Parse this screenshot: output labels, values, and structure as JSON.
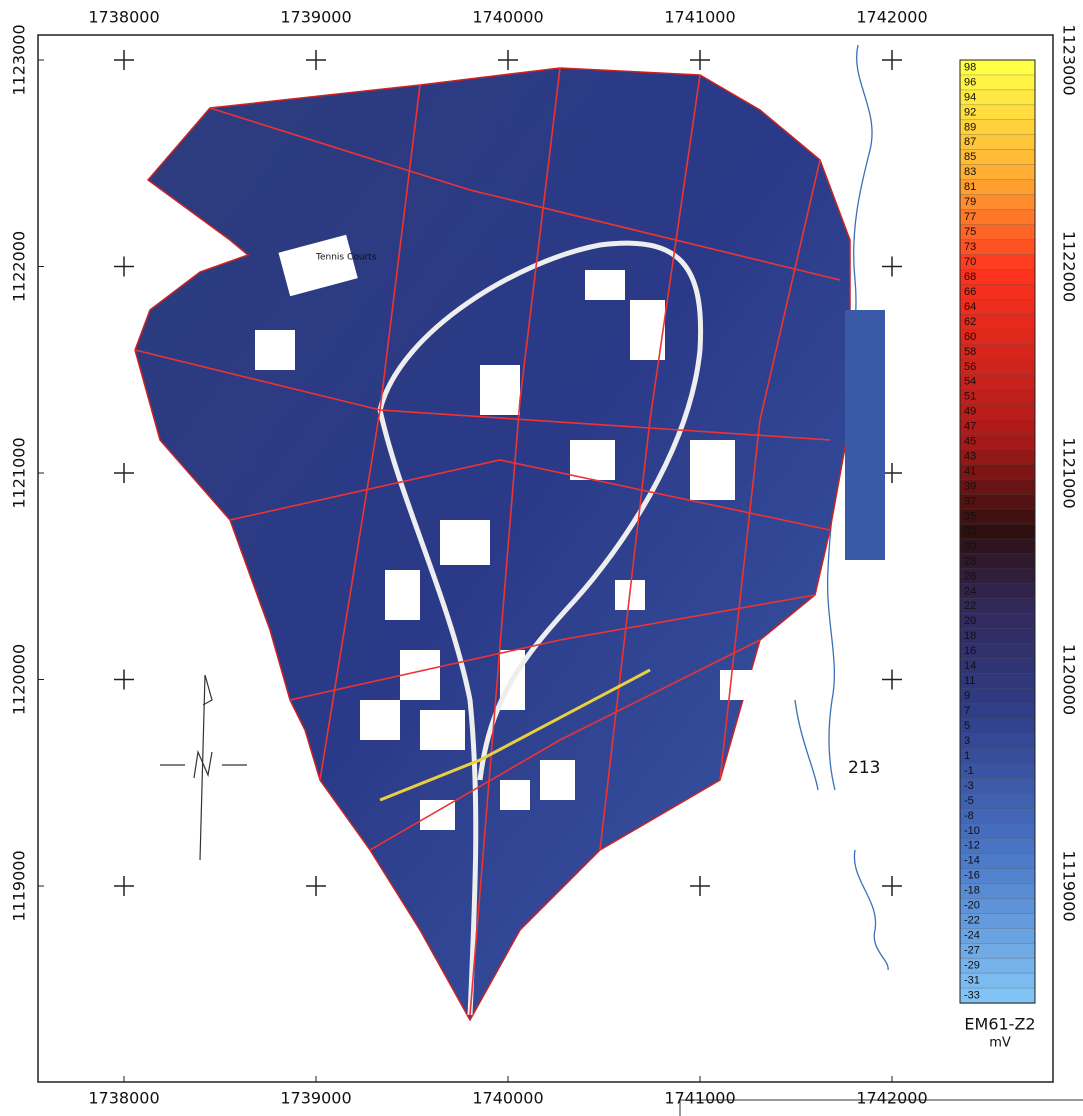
{
  "map": {
    "x_ticks": [
      1738000,
      1739000,
      1740000,
      1741000,
      1742000
    ],
    "y_ticks": [
      1123000,
      1122000,
      1121000,
      1120000,
      1119000
    ],
    "legend": {
      "labels": [
        98,
        96,
        94,
        92,
        89,
        87,
        85,
        83,
        81,
        79,
        77,
        75,
        73,
        70,
        68,
        66,
        64,
        62,
        60,
        58,
        56,
        54,
        51,
        49,
        47,
        45,
        43,
        41,
        39,
        37,
        35,
        33,
        30,
        28,
        26,
        24,
        22,
        20,
        18,
        16,
        14,
        11,
        9,
        7,
        5,
        3,
        1,
        -1,
        -3,
        -5,
        -8,
        -10,
        -12,
        -14,
        -16,
        -18,
        -20,
        -22,
        -24,
        -27,
        -29,
        -31,
        -33
      ],
      "title": "EM61-Z2",
      "unit": "mV"
    },
    "annotations": {
      "courts": "Tennis Courts",
      "marker": "213"
    }
  }
}
